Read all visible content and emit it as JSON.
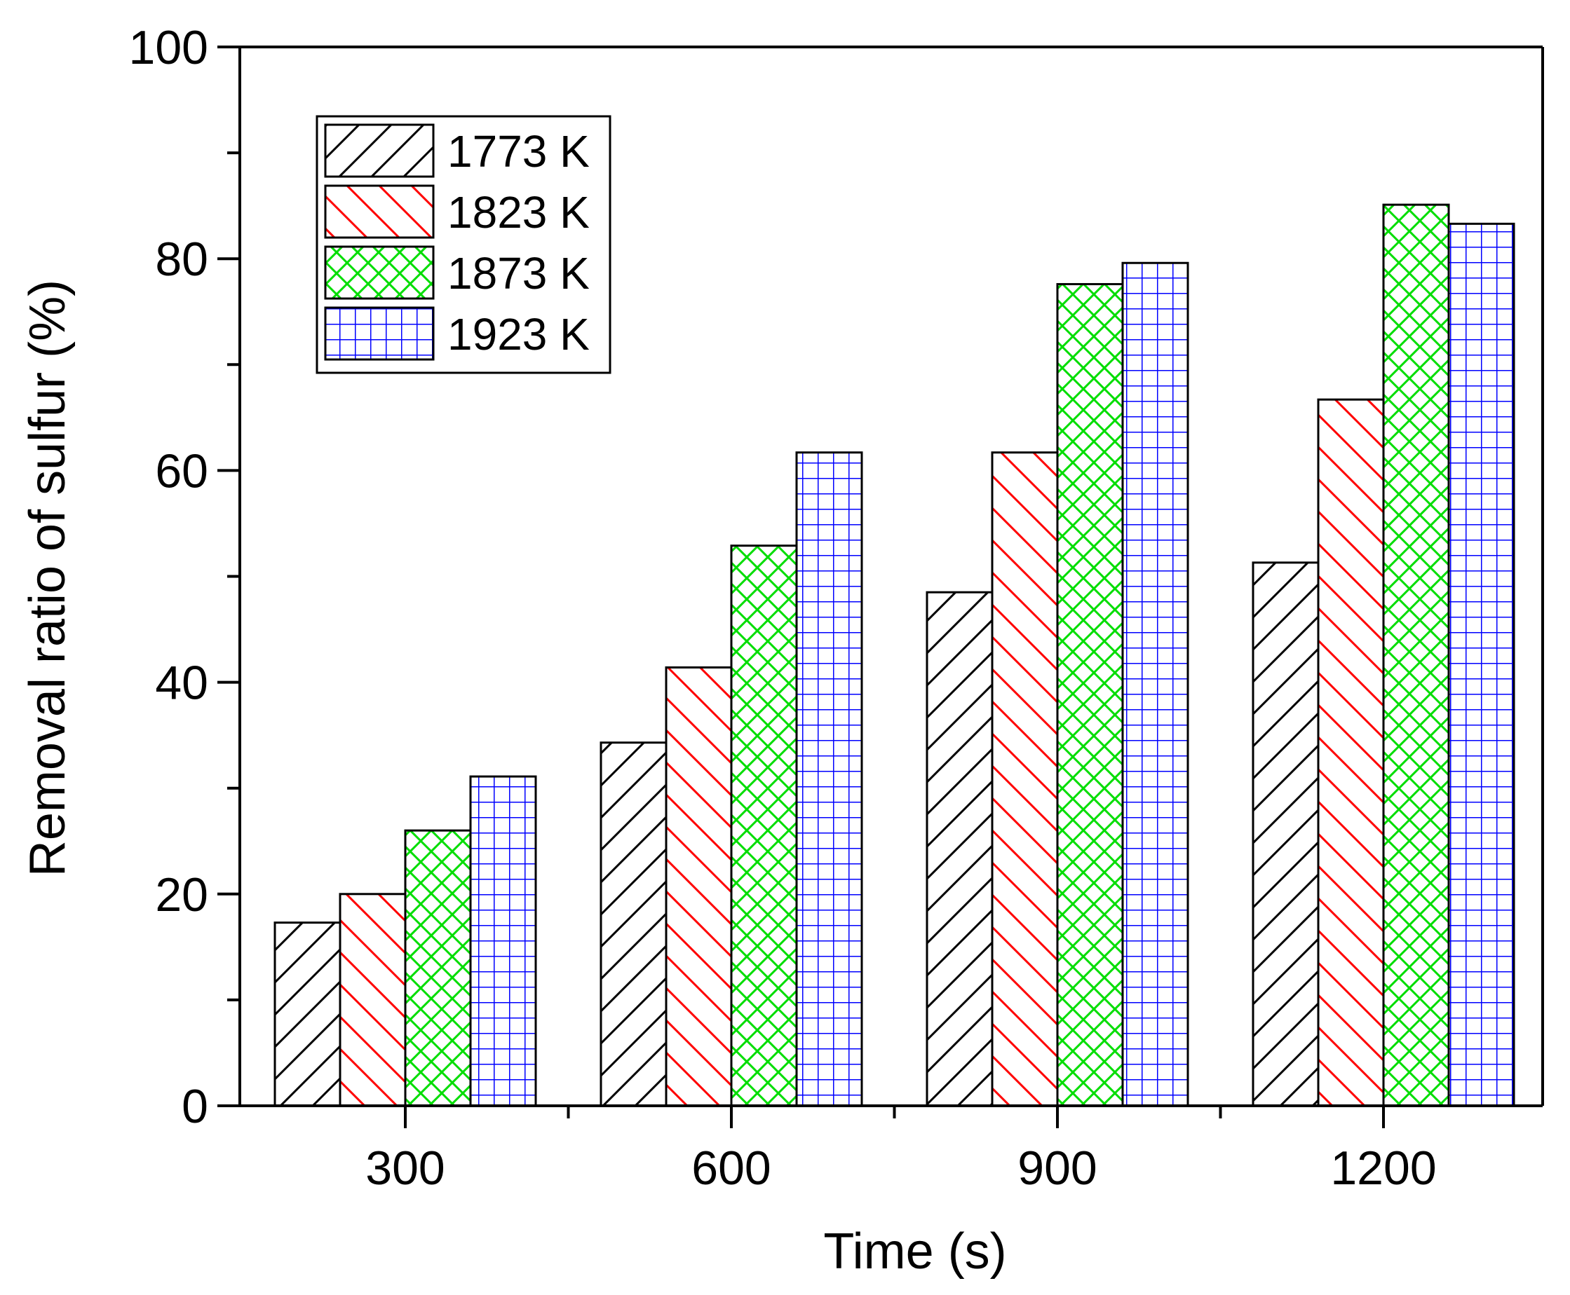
{
  "chart_data": {
    "type": "bar",
    "title": "",
    "xlabel": "Time (s)",
    "ylabel": "Removal ratio of sulfur (%)",
    "categories": [
      "300",
      "600",
      "900",
      "1200"
    ],
    "ylim": [
      0,
      100
    ],
    "yticks": [
      "0",
      "20",
      "40",
      "60",
      "80",
      "100"
    ],
    "legend_position": "top-left",
    "series": [
      {
        "name": "1773 K",
        "color": "#000000",
        "pattern": "diagonal-up",
        "values": [
          17.3,
          34.3,
          48.5,
          51.3
        ]
      },
      {
        "name": "1823 K",
        "color": "#ff0000",
        "pattern": "diagonal-down",
        "values": [
          20.0,
          41.4,
          61.7,
          66.7
        ]
      },
      {
        "name": "1873 K",
        "color": "#00dd00",
        "pattern": "crosshatch",
        "values": [
          26.0,
          52.9,
          77.6,
          85.1
        ]
      },
      {
        "name": "1923 K",
        "color": "#0000ff",
        "pattern": "grid",
        "values": [
          31.1,
          61.7,
          79.6,
          83.3
        ]
      }
    ]
  }
}
